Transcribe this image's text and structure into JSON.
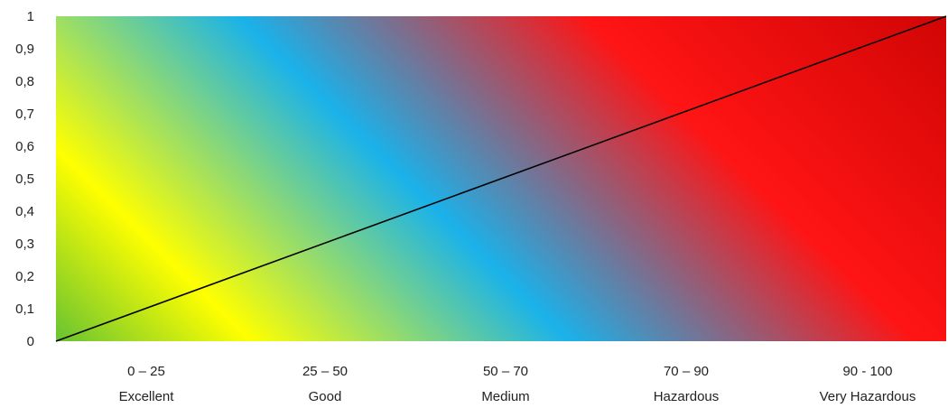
{
  "chart_data": {
    "type": "line",
    "title": "",
    "xlabel": "",
    "ylabel": "",
    "ylim": [
      0,
      1
    ],
    "y_ticks": [
      "0",
      "0,1",
      "0,2",
      "0,3",
      "0,4",
      "0,5",
      "0,6",
      "0,7",
      "0,8",
      "0,9",
      "1"
    ],
    "categories": [
      {
        "range": "0 – 25",
        "label": "Excellent"
      },
      {
        "range": "25 – 50",
        "label": "Good"
      },
      {
        "range": "50 – 70",
        "label": "Medium"
      },
      {
        "range": "70 – 90",
        "label": "Hazardous"
      },
      {
        "range": "90 - 100",
        "label": "Very Hazardous"
      }
    ],
    "series": [
      {
        "x": [
          0,
          1
        ],
        "values": [
          0,
          1
        ],
        "color": "#000000"
      }
    ],
    "background_gradient": {
      "direction": "diagonal from bottom-left to top-right",
      "colors": [
        "#1fa64a",
        "#ffff00",
        "#1ab2ea",
        "#ff1414",
        "#c00000"
      ]
    },
    "grid": false,
    "legend": "none"
  }
}
